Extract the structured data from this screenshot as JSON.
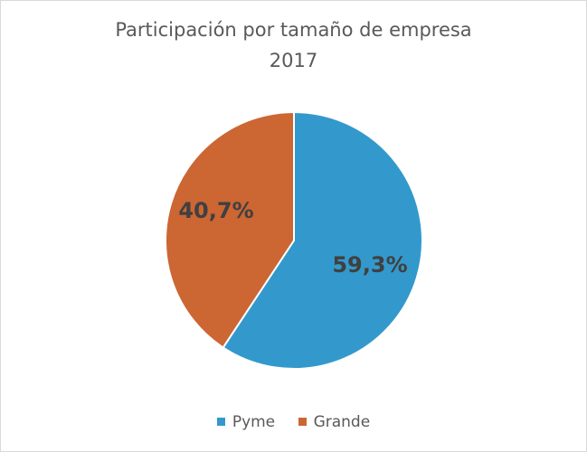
{
  "chart_data": {
    "type": "pie",
    "title": "Participación por tamaño de empresa",
    "subtitle": "2017",
    "slices": [
      {
        "name": "Pyme",
        "value": 59.3,
        "label": "59,3%",
        "color": "#3399cc"
      },
      {
        "name": "Grande",
        "value": 40.7,
        "label": "40,7%",
        "color": "#cc6633"
      }
    ],
    "legend_position": "bottom"
  }
}
